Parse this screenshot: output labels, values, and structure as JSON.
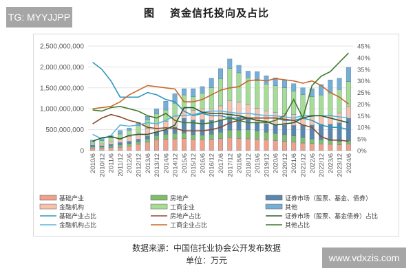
{
  "watermarks": {
    "top_left": "TG: MYYJJPP",
    "bottom_right": "www.vdxzis.com"
  },
  "title": {
    "prefix": "图",
    "text": "资金信托投向及占比"
  },
  "caption": {
    "source": "数据来源：中国信托业协会公开发布数据",
    "unit": "单位：万元"
  },
  "colors": {
    "infra": "#f0a187",
    "realestate": "#7fbf6a",
    "finance": "#f7c3ae",
    "industry": "#a9dc93",
    "securities": "#5b86ad",
    "other": "#76aed6",
    "infra_ratio": "#2f97b8",
    "realestate_ratio": "#8a4a2a",
    "finance_ratio": "#5ab6de",
    "industry_ratio": "#c8682a",
    "securities_ratio": "#2e5a2e",
    "other_ratio": "#3d7a2a"
  },
  "chart_data": {
    "type": "bar",
    "subtype": "stacked bar + line (dual axis)",
    "title": "图 资金信托投向及占比",
    "xlabel": "",
    "ylabel_left": "万元",
    "ylabel_right": "占比",
    "ylim_left": [
      0,
      2500000000
    ],
    "ylim_right": [
      0,
      0.45
    ],
    "yticks_left": [
      "0",
      "500,000,000",
      "1,000,000,000",
      "1,500,000,000",
      "2,000,000,000",
      "2,500,000,000"
    ],
    "yticks_right": [
      "0%",
      "5%",
      "10%",
      "15%",
      "20%",
      "25%",
      "30%",
      "35%",
      "40%",
      "45%"
    ],
    "grid": true,
    "legend_position": "bottom",
    "categories": [
      "2010/6",
      "2010/12",
      "2011/6",
      "2011/12",
      "2012/6",
      "2012/12",
      "2013/6",
      "2013/12",
      "2014/6",
      "2014/12",
      "2015/6",
      "2015/12",
      "2016/6",
      "2016/12",
      "2017/6",
      "2017/12",
      "2018/6",
      "2018/12",
      "2019/6",
      "2019/12",
      "2020/6",
      "2020/12",
      "2021/6",
      "2021/12",
      "2022/6",
      "2022/12",
      "2023/6",
      "2023/12",
      "2024/6"
    ],
    "bar_series": [
      {
        "name": "基础产业",
        "key": "infra",
        "values": [
          62000000,
          55000000,
          70000000,
          80000000,
          110000000,
          150000000,
          200000000,
          260000000,
          270000000,
          280000000,
          290000000,
          270000000,
          260000000,
          270000000,
          290000000,
          310000000,
          290000000,
          280000000,
          270000000,
          260000000,
          240000000,
          220000000,
          200000000,
          180000000,
          170000000,
          160000000,
          150000000,
          140000000,
          160000000
        ]
      },
      {
        "name": "房地产",
        "key": "realestate",
        "values": [
          30000000,
          30000000,
          40000000,
          60000000,
          60000000,
          60000000,
          80000000,
          100000000,
          120000000,
          130000000,
          130000000,
          110000000,
          110000000,
          120000000,
          150000000,
          180000000,
          200000000,
          220000000,
          200000000,
          180000000,
          170000000,
          160000000,
          150000000,
          130000000,
          110000000,
          100000000,
          90000000,
          80000000,
          80000000
        ]
      },
      {
        "name": "证券市场（股票、基金、债券）",
        "key": "securities",
        "values": [
          35000000,
          30000000,
          40000000,
          50000000,
          50000000,
          60000000,
          70000000,
          80000000,
          100000000,
          150000000,
          350000000,
          350000000,
          370000000,
          330000000,
          300000000,
          320000000,
          310000000,
          260000000,
          210000000,
          200000000,
          210000000,
          230000000,
          250000000,
          300000000,
          330000000,
          370000000,
          390000000,
          440000000,
          530000000
        ]
      },
      {
        "name": "金融机构",
        "key": "finance",
        "values": [
          28000000,
          40000000,
          60000000,
          90000000,
          120000000,
          150000000,
          180000000,
          200000000,
          210000000,
          260000000,
          240000000,
          230000000,
          250000000,
          280000000,
          330000000,
          390000000,
          360000000,
          340000000,
          330000000,
          310000000,
          290000000,
          270000000,
          260000000,
          230000000,
          200000000,
          200000000,
          220000000,
          240000000,
          280000000
        ]
      },
      {
        "name": "工商企业",
        "key": "industry",
        "values": [
          55000000,
          80000000,
          95000000,
          115000000,
          140000000,
          180000000,
          210000000,
          240000000,
          270000000,
          310000000,
          320000000,
          330000000,
          380000000,
          500000000,
          650000000,
          760000000,
          700000000,
          640000000,
          660000000,
          640000000,
          640000000,
          620000000,
          560000000,
          500000000,
          480000000,
          500000000,
          530000000,
          560000000,
          600000000
        ]
      },
      {
        "name": "其他",
        "key": "other",
        "values": [
          40000000,
          65000000,
          55000000,
          85000000,
          60000000,
          70000000,
          80000000,
          120000000,
          210000000,
          230000000,
          150000000,
          190000000,
          160000000,
          230000000,
          240000000,
          230000000,
          180000000,
          160000000,
          220000000,
          200000000,
          190000000,
          180000000,
          180000000,
          160000000,
          190000000,
          250000000,
          310000000,
          270000000,
          340000000
        ]
      }
    ],
    "line_series": [
      {
        "name": "基础产业占比",
        "key": "infra_ratio",
        "values": [
          0.38,
          0.35,
          0.3,
          0.23,
          0.23,
          0.23,
          0.25,
          0.24,
          0.22,
          0.21,
          0.17,
          0.15,
          0.16,
          0.15,
          0.15,
          0.14,
          0.14,
          0.14,
          0.14,
          0.14,
          0.14,
          0.13,
          0.13,
          0.14,
          0.13,
          0.11,
          0.1,
          0.1,
          0.09
        ]
      },
      {
        "name": "房地产占比",
        "key": "realestate_ratio",
        "values": [
          0.115,
          0.14,
          0.155,
          0.145,
          0.13,
          0.12,
          0.1,
          0.095,
          0.098,
          0.096,
          0.085,
          0.085,
          0.085,
          0.09,
          0.1,
          0.12,
          0.13,
          0.14,
          0.14,
          0.14,
          0.14,
          0.135,
          0.13,
          0.11,
          0.1,
          0.06,
          0.045,
          0.045,
          0.04
        ]
      },
      {
        "name": "金融机构占比",
        "key": "finance_ratio",
        "values": [
          0.07,
          0.05,
          0.065,
          0.11,
          0.105,
          0.11,
          0.12,
          0.115,
          0.13,
          0.15,
          0.15,
          0.155,
          0.165,
          0.17,
          0.17,
          0.165,
          0.16,
          0.16,
          0.155,
          0.15,
          0.15,
          0.145,
          0.14,
          0.15,
          0.15,
          0.15,
          0.15,
          0.145,
          0.14
        ]
      },
      {
        "name": "工商企业占比",
        "key": "industry_ratio",
        "values": [
          0.18,
          0.185,
          0.19,
          0.21,
          0.24,
          0.26,
          0.28,
          0.275,
          0.27,
          0.265,
          0.21,
          0.21,
          0.22,
          0.24,
          0.26,
          0.27,
          0.275,
          0.3,
          0.305,
          0.3,
          0.31,
          0.305,
          0.3,
          0.29,
          0.3,
          0.28,
          0.25,
          0.23,
          0.2
        ]
      },
      {
        "name": "证券市场（股票、基金债券）占比",
        "key": "securities_ratio",
        "values": [
          0.04,
          0.055,
          0.06,
          0.05,
          0.065,
          0.07,
          0.07,
          0.08,
          0.09,
          0.11,
          0.185,
          0.185,
          0.165,
          0.16,
          0.16,
          0.155,
          0.15,
          0.14,
          0.13,
          0.125,
          0.11,
          0.115,
          0.12,
          0.14,
          0.15,
          0.15,
          0.14,
          0.13,
          0.12
        ]
      },
      {
        "name": "其他占比",
        "key": "other_ratio",
        "values": [
          0.175,
          0.17,
          0.185,
          0.19,
          0.18,
          0.17,
          0.15,
          0.14,
          0.16,
          0.13,
          0.12,
          0.12,
          0.115,
          0.12,
          0.13,
          0.14,
          0.13,
          0.12,
          0.12,
          0.12,
          0.13,
          0.15,
          0.22,
          0.14,
          0.28,
          0.32,
          0.34,
          0.38,
          0.42
        ]
      }
    ]
  },
  "legend": {
    "items": [
      {
        "label": "基础产业",
        "key": "infra",
        "kind": "bar"
      },
      {
        "label": "房地产",
        "key": "realestate",
        "kind": "bar"
      },
      {
        "label": "证券市场（股票、基金、债券）",
        "key": "securities",
        "kind": "bar"
      },
      {
        "label": "金融机构",
        "key": "finance",
        "kind": "bar"
      },
      {
        "label": "工商企业",
        "key": "industry",
        "kind": "bar"
      },
      {
        "label": "其他",
        "key": "other",
        "kind": "bar"
      },
      {
        "label": "基础产业占比",
        "key": "infra_ratio",
        "kind": "line"
      },
      {
        "label": "房地产占比",
        "key": "realestate_ratio",
        "kind": "line"
      },
      {
        "label": "证券市场（股票、基金债券）占比",
        "key": "securities_ratio",
        "kind": "line"
      },
      {
        "label": "金融机构占比",
        "key": "finance_ratio",
        "kind": "line"
      },
      {
        "label": "工商企业占比",
        "key": "industry_ratio",
        "kind": "line"
      },
      {
        "label": "其他占比",
        "key": "other_ratio",
        "kind": "line"
      }
    ]
  }
}
